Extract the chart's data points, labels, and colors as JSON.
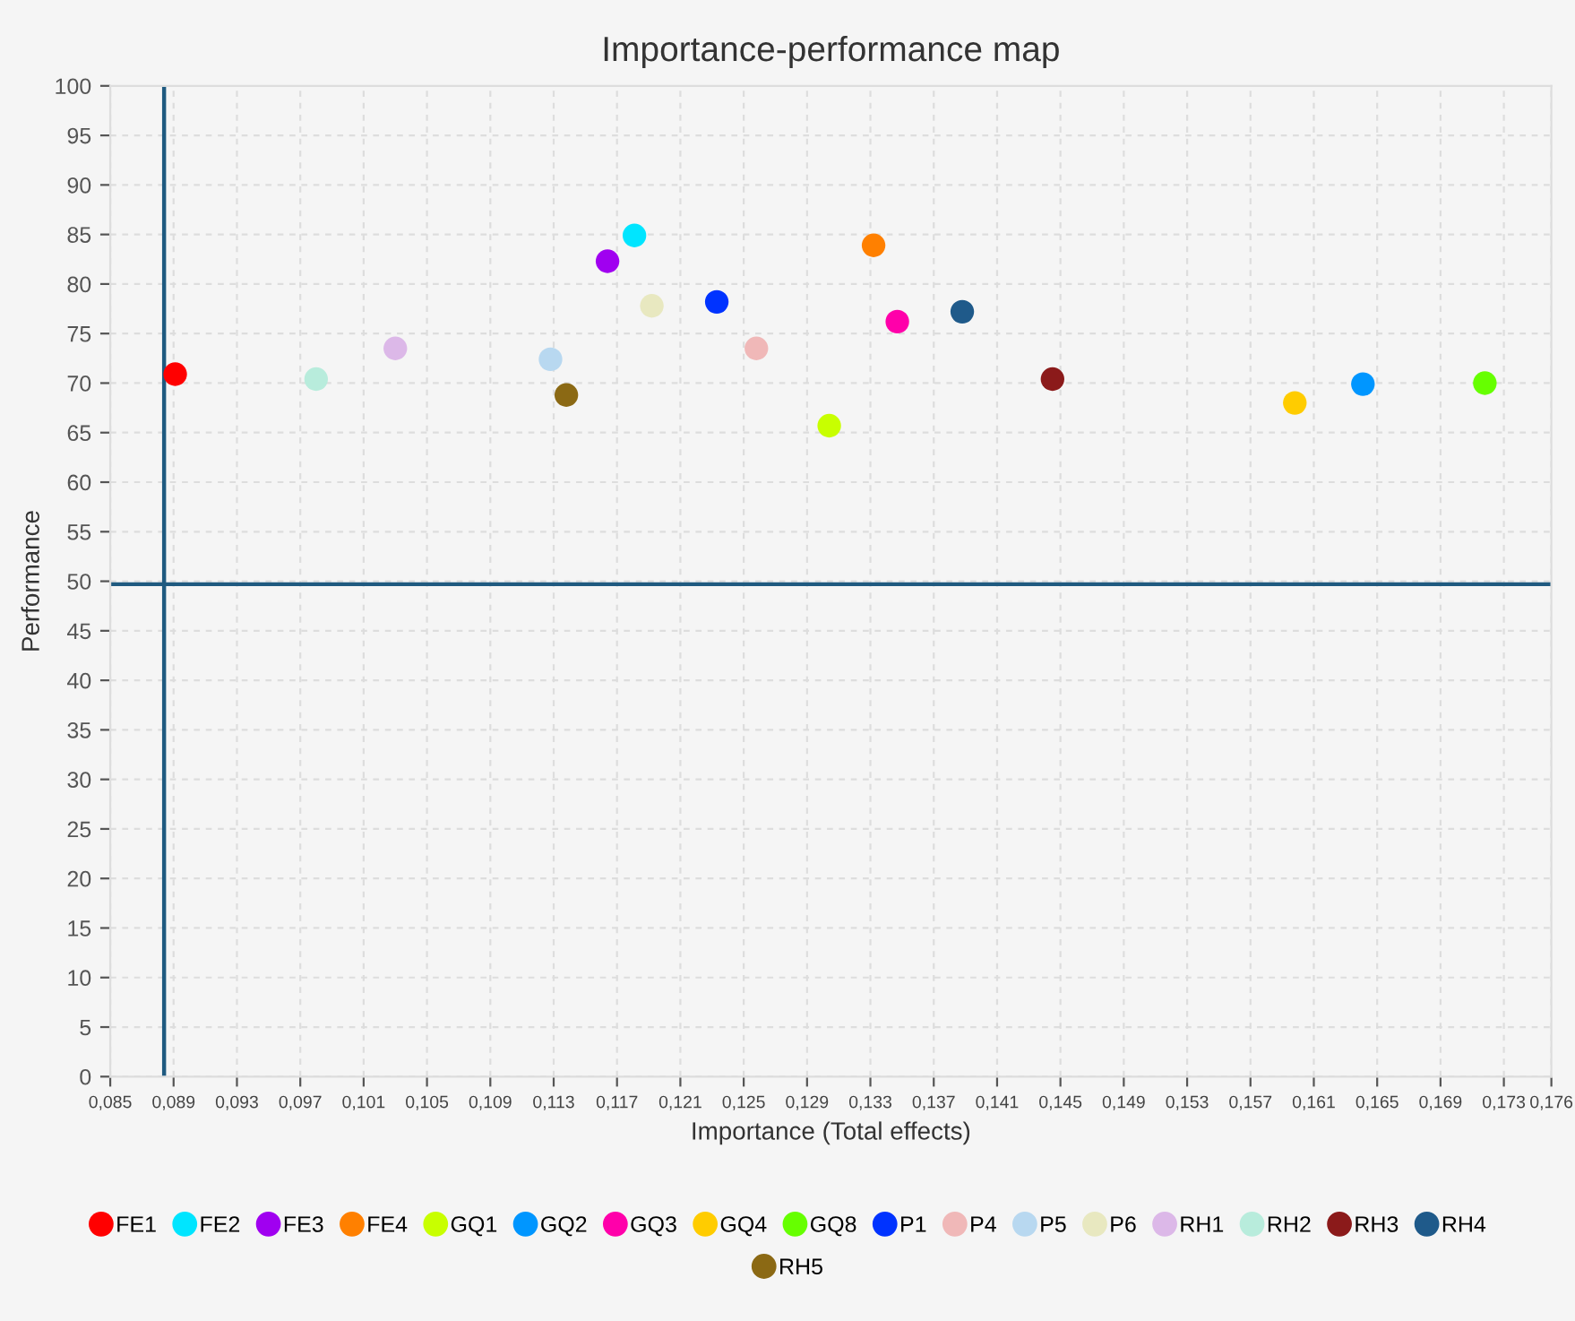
{
  "chart_data": {
    "type": "scatter",
    "title": "Importance-performance map",
    "xlabel": "Importance (Total effects)",
    "ylabel": "Performance",
    "xlim": [
      0.085,
      0.176
    ],
    "ylim": [
      0,
      100
    ],
    "xticks": [
      {
        "value": 0.085,
        "label": "0,085"
      },
      {
        "value": 0.089,
        "label": "0,089"
      },
      {
        "value": 0.093,
        "label": "0,093"
      },
      {
        "value": 0.097,
        "label": "0,097"
      },
      {
        "value": 0.101,
        "label": "0,101"
      },
      {
        "value": 0.105,
        "label": "0,105"
      },
      {
        "value": 0.109,
        "label": "0,109"
      },
      {
        "value": 0.113,
        "label": "0,113"
      },
      {
        "value": 0.117,
        "label": "0,117"
      },
      {
        "value": 0.121,
        "label": "0,121"
      },
      {
        "value": 0.125,
        "label": "0,125"
      },
      {
        "value": 0.129,
        "label": "0,129"
      },
      {
        "value": 0.133,
        "label": "0,133"
      },
      {
        "value": 0.137,
        "label": "0,137"
      },
      {
        "value": 0.141,
        "label": "0,141"
      },
      {
        "value": 0.145,
        "label": "0,145"
      },
      {
        "value": 0.149,
        "label": "0,149"
      },
      {
        "value": 0.153,
        "label": "0,153"
      },
      {
        "value": 0.157,
        "label": "0,157"
      },
      {
        "value": 0.161,
        "label": "0,161"
      },
      {
        "value": 0.165,
        "label": "0,165"
      },
      {
        "value": 0.169,
        "label": "0,169"
      },
      {
        "value": 0.173,
        "label": "0,173"
      },
      {
        "value": 0.176,
        "label": "0,176"
      }
    ],
    "yticks": [
      0,
      5,
      10,
      15,
      20,
      25,
      30,
      35,
      40,
      45,
      50,
      55,
      60,
      65,
      70,
      75,
      80,
      85,
      90,
      95,
      100
    ],
    "grid": true,
    "legend": "bottom",
    "marker": "circle",
    "ref_lines": [
      {
        "axis": "x",
        "value": 0.0884,
        "color": "#1f5a80"
      },
      {
        "axis": "y",
        "value": 49.7,
        "color": "#1f5a80"
      }
    ],
    "series": [
      {
        "name": "FE1",
        "color": "#ff0000",
        "x": [
          0.0891
        ],
        "values": [
          70.9
        ]
      },
      {
        "name": "FE2",
        "color": "#00e5ff",
        "x": [
          0.1181
        ],
        "values": [
          84.9
        ]
      },
      {
        "name": "FE3",
        "color": "#a000f0",
        "x": [
          0.1164
        ],
        "values": [
          82.3
        ]
      },
      {
        "name": "FE4",
        "color": "#ff8000",
        "x": [
          0.1332
        ],
        "values": [
          83.9
        ]
      },
      {
        "name": "GQ1",
        "color": "#c8ff00",
        "x": [
          0.1304
        ],
        "values": [
          65.7
        ]
      },
      {
        "name": "GQ2",
        "color": "#0096ff",
        "x": [
          0.1641
        ],
        "values": [
          69.9
        ]
      },
      {
        "name": "GQ3",
        "color": "#ff00aa",
        "x": [
          0.1347
        ],
        "values": [
          76.2
        ]
      },
      {
        "name": "GQ4",
        "color": "#ffcc00",
        "x": [
          0.1598
        ],
        "values": [
          68.0
        ]
      },
      {
        "name": "GQ8",
        "color": "#66ff00",
        "x": [
          0.1718
        ],
        "values": [
          70.0
        ]
      },
      {
        "name": "P1",
        "color": "#0033ff",
        "x": [
          0.1233
        ],
        "values": [
          78.2
        ]
      },
      {
        "name": "P4",
        "color": "#f0b8b8",
        "x": [
          0.1258
        ],
        "values": [
          73.5
        ]
      },
      {
        "name": "P5",
        "color": "#b8d8f0",
        "x": [
          0.1128
        ],
        "values": [
          72.4
        ]
      },
      {
        "name": "P6",
        "color": "#e8e8c0",
        "x": [
          0.1192
        ],
        "values": [
          77.8
        ]
      },
      {
        "name": "RH1",
        "color": "#dcb8e8",
        "x": [
          0.103
        ],
        "values": [
          73.5
        ]
      },
      {
        "name": "RH2",
        "color": "#b8ecdc",
        "x": [
          0.098
        ],
        "values": [
          70.4
        ]
      },
      {
        "name": "RH3",
        "color": "#8b1a1a",
        "x": [
          0.1445
        ],
        "values": [
          70.4
        ]
      },
      {
        "name": "RH4",
        "color": "#1f5a8a",
        "x": [
          0.1388
        ],
        "values": [
          77.2
        ]
      },
      {
        "name": "RH5",
        "color": "#8b6914",
        "x": [
          0.1138
        ],
        "values": [
          68.8
        ]
      }
    ]
  }
}
